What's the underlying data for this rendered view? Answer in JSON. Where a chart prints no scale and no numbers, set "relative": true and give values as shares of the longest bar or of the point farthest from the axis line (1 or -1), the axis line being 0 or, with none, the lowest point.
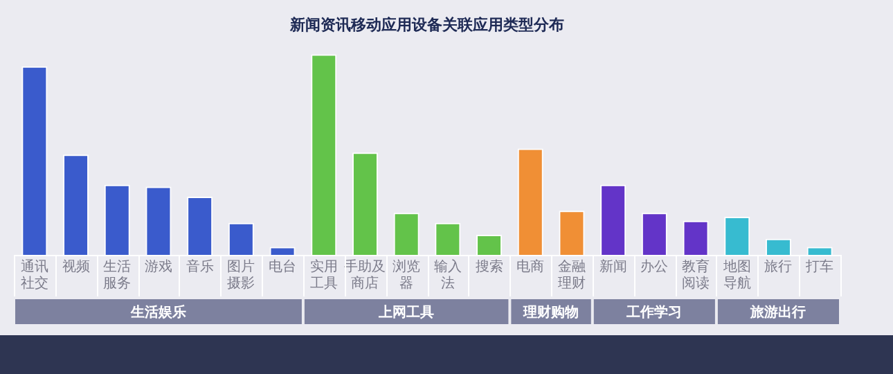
{
  "chart_data": {
    "type": "bar",
    "title": "新闻资讯移动应用设备关联应用类型分布",
    "relative": true,
    "categories": [
      "通讯社交",
      "视频",
      "生活服务",
      "游戏",
      "音乐",
      "图片摄影",
      "电台",
      "实用工具",
      "手助及商店",
      "浏览器",
      "输入法",
      "搜索",
      "电商",
      "金融理财",
      "新闻",
      "办公",
      "教育阅读",
      "地图导航",
      "旅行",
      "打车"
    ],
    "series": [
      {
        "name": "生活娱乐",
        "color": "#3a5bcc",
        "values": [
          0.94,
          0.5,
          0.35,
          0.34,
          0.29,
          0.16,
          0.04,
          null,
          null,
          null,
          null,
          null,
          null,
          null,
          null,
          null,
          null,
          null,
          null,
          null
        ]
      },
      {
        "name": "上网工具",
        "color": "#63c34a",
        "values": [
          null,
          null,
          null,
          null,
          null,
          null,
          null,
          1,
          0.51,
          0.21,
          0.16,
          0.1,
          null,
          null,
          null,
          null,
          null,
          null,
          null,
          null
        ]
      },
      {
        "name": "理财购物",
        "color": "#f08f35",
        "values": [
          null,
          null,
          null,
          null,
          null,
          null,
          null,
          null,
          null,
          null,
          null,
          null,
          0.53,
          0.22,
          null,
          null,
          null,
          null,
          null,
          null
        ]
      },
      {
        "name": "工作学习",
        "color": "#6334c8",
        "values": [
          null,
          null,
          null,
          null,
          null,
          null,
          null,
          null,
          null,
          null,
          null,
          null,
          null,
          null,
          0.35,
          0.21,
          0.17,
          null,
          null,
          null
        ]
      },
      {
        "name": "旅游出行",
        "color": "#37bbd0",
        "values": [
          null,
          null,
          null,
          null,
          null,
          null,
          null,
          null,
          null,
          null,
          null,
          null,
          null,
          null,
          null,
          null,
          null,
          0.19,
          0.08,
          0.04
        ]
      }
    ],
    "grid": false,
    "legend": false
  }
}
